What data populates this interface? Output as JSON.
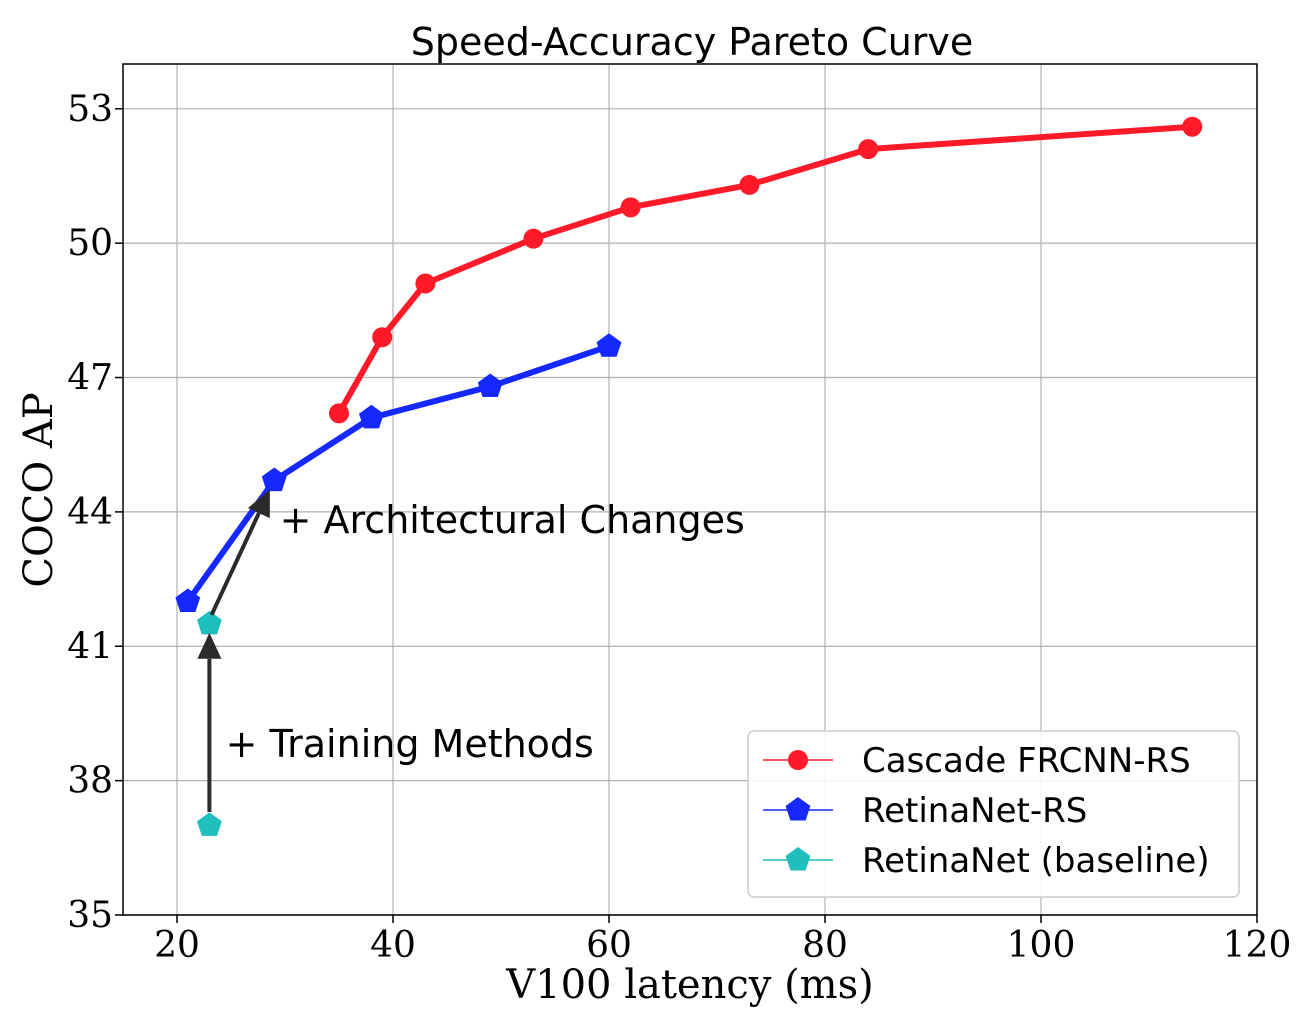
{
  "chart_data": {
    "type": "line",
    "title": "Speed-Accuracy Pareto Curve",
    "xlabel": "V100 latency (ms)",
    "ylabel": "COCO AP",
    "xlim": [
      15,
      120
    ],
    "ylim": [
      35,
      54
    ],
    "xticks": [
      20,
      40,
      60,
      80,
      100,
      120
    ],
    "yticks": [
      35,
      38,
      41,
      44,
      47,
      50,
      53
    ],
    "grid": true,
    "legend_position": "lower-right",
    "series": [
      {
        "name": "Cascade FRCNN-RS",
        "color": "#ff1a2a",
        "marker": "circle",
        "x": [
          35,
          39,
          43,
          53,
          62,
          73,
          84,
          114
        ],
        "y": [
          46.2,
          47.9,
          49.1,
          50.1,
          50.8,
          51.3,
          52.1,
          52.6
        ]
      },
      {
        "name": "RetinaNet-RS",
        "color": "#1428ff",
        "marker": "pentagon",
        "x": [
          21,
          29,
          38,
          49,
          60
        ],
        "y": [
          42.0,
          44.7,
          46.1,
          46.8,
          47.7
        ]
      },
      {
        "name": "RetinaNet (baseline)",
        "color": "#1fbfbf",
        "marker": "pentagon",
        "line": false,
        "x": [
          23,
          23
        ],
        "y": [
          37.0,
          41.5
        ]
      }
    ],
    "annotations": [
      {
        "text": "+ Training Methods",
        "x": 24.5,
        "y": 38.8,
        "arrow_from": [
          23,
          37.3
        ],
        "arrow_to": [
          23,
          41.3
        ]
      },
      {
        "text": "+ Architectural Changes",
        "x": 29.5,
        "y": 43.8,
        "arrow_from": [
          23.2,
          41.7
        ],
        "arrow_to": [
          28.6,
          44.5
        ]
      }
    ]
  }
}
